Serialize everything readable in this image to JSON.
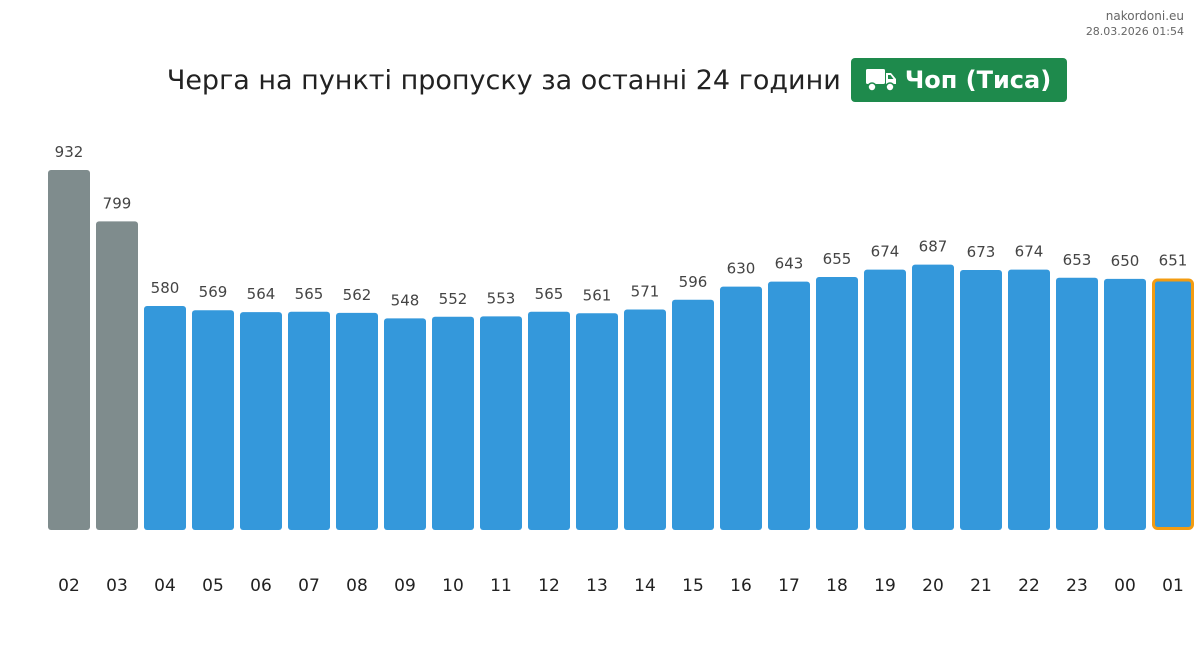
{
  "source": {
    "site": "nakordoni.eu",
    "timestamp": "28.03.2026 01:54"
  },
  "header": {
    "title": "Черга на пункті пропуску за останні 24 години",
    "badge_label": "Чоп (Тиса)",
    "badge_icon": "truck-icon",
    "badge_color": "#1e8a4c"
  },
  "colors": {
    "bar": "#3498db",
    "bar_past": "#7f8c8d",
    "current_outline": "#f39c12",
    "label": "#444444",
    "tick": "#222222"
  },
  "chart_data": {
    "type": "bar",
    "categories": [
      "02",
      "03",
      "04",
      "05",
      "06",
      "07",
      "08",
      "09",
      "10",
      "11",
      "12",
      "13",
      "14",
      "15",
      "16",
      "17",
      "18",
      "19",
      "20",
      "21",
      "22",
      "23",
      "00",
      "01"
    ],
    "values": [
      932,
      799,
      580,
      569,
      564,
      565,
      562,
      548,
      552,
      553,
      565,
      561,
      571,
      596,
      630,
      643,
      655,
      674,
      687,
      673,
      674,
      653,
      650,
      651
    ],
    "title": "Черга на пункті пропуску за останні 24 години",
    "xlabel": "",
    "ylabel": "",
    "ylim": [
      0,
      932
    ],
    "grid": false,
    "data_labels": true,
    "past_categories": [
      "02",
      "03"
    ],
    "current_category": "01"
  }
}
